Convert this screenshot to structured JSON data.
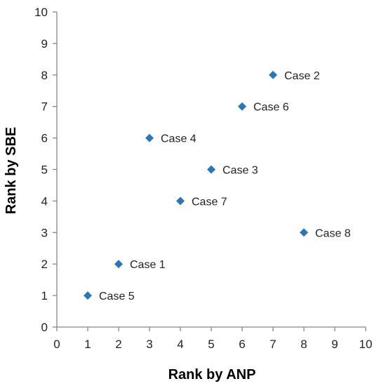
{
  "chart_data": {
    "type": "scatter",
    "xlabel": "Rank by ANP",
    "ylabel": "Rank by SBE",
    "xlim": [
      0,
      10
    ],
    "ylim": [
      0,
      10
    ],
    "xticks": [
      "0",
      "1",
      "2",
      "3",
      "4",
      "5",
      "6",
      "7",
      "8",
      "9",
      "10"
    ],
    "yticks": [
      "0",
      "1",
      "2",
      "3",
      "4",
      "5",
      "6",
      "7",
      "8",
      "9",
      "10"
    ],
    "grid": false,
    "legend": "none",
    "marker": "diamond",
    "marker_color": "#2E75B6",
    "axis_color": "#868686",
    "points": [
      {
        "label": "Case 1",
        "x": 2,
        "y": 2
      },
      {
        "label": "Case 2",
        "x": 7,
        "y": 8
      },
      {
        "label": "Case 3",
        "x": 5,
        "y": 5
      },
      {
        "label": "Case 4",
        "x": 3,
        "y": 6
      },
      {
        "label": "Case 5",
        "x": 1,
        "y": 1
      },
      {
        "label": "Case 6",
        "x": 6,
        "y": 7
      },
      {
        "label": "Case 7",
        "x": 4,
        "y": 4
      },
      {
        "label": "Case 8",
        "x": 8,
        "y": 3
      }
    ]
  }
}
